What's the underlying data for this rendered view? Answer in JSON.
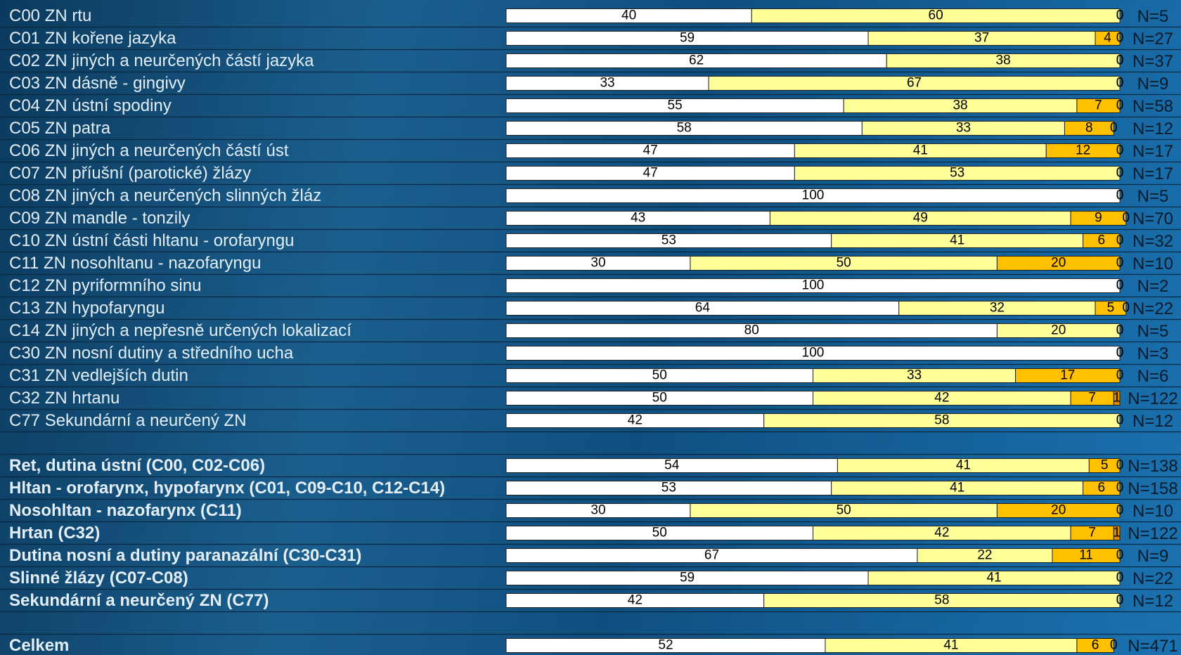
{
  "chart_data": {
    "type": "stacked_bar_horizontal",
    "categories": [
      "C00 ZN rtu",
      "C01 ZN kořene jazyka",
      "C02 ZN jiných a neurčených částí jazyka",
      "C03 ZN dásně - gingivy",
      "C04 ZN ústní spodiny",
      "C05 ZN patra",
      "C06 ZN jiných a neurčených částí úst",
      "C07 ZN příušní (parotické) žlázy",
      "C08 ZN jiných a neurčených slinných žláz",
      "C09 ZN mandle - tonzily",
      "C10 ZN ústní části hltanu - orofaryngu",
      "C11 ZN nosohltanu - nazofaryngu",
      "C12 ZN pyriformního sinu",
      "C13 ZN hypofaryngu",
      "C14 ZN jiných a nepřesně určených lokalizací",
      "C30 ZN nosní dutiny a středního ucha",
      "C31 ZN vedlejších dutin",
      "C32 ZN hrtanu",
      "C77 Sekundární a neurčený ZN",
      null,
      "Ret, dutina ústní (C00, C02-C06)",
      "Hltan - orofarynx, hypofarynx (C01, C09-C10, C12-C14)",
      "Nosohltan - nazofarynx (C11)",
      "Hrtan (C32)",
      "Dutina nosní a dutiny paranazální (C30-C31)",
      "Slinné žlázy (C07-C08)",
      "Sekundární a neurčený ZN (C77)",
      null,
      "Celkem"
    ],
    "series": [
      {
        "color": "#ffffff",
        "values": [
          40,
          59,
          62,
          33,
          55,
          58,
          47,
          47,
          100,
          43,
          53,
          30,
          100,
          64,
          80,
          100,
          50,
          50,
          42,
          null,
          54,
          53,
          30,
          50,
          67,
          59,
          42,
          null,
          52
        ]
      },
      {
        "color": "#ffff99",
        "values": [
          60,
          37,
          38,
          67,
          38,
          33,
          41,
          53,
          0,
          49,
          41,
          50,
          0,
          32,
          20,
          0,
          33,
          42,
          58,
          null,
          41,
          41,
          50,
          42,
          22,
          41,
          58,
          null,
          41
        ]
      },
      {
        "color": "#ffc000",
        "values": [
          0,
          4,
          0,
          0,
          7,
          8,
          12,
          0,
          0,
          9,
          6,
          20,
          0,
          5,
          0,
          0,
          17,
          7,
          0,
          null,
          5,
          6,
          20,
          7,
          11,
          0,
          0,
          null,
          6
        ]
      },
      {
        "color": "#e08a00",
        "values": [
          0,
          0,
          0,
          0,
          0,
          0,
          0,
          0,
          0,
          0,
          0,
          0,
          0,
          0,
          0,
          0,
          0,
          1,
          0,
          null,
          0,
          0,
          0,
          1,
          0,
          0,
          0,
          null,
          0
        ]
      }
    ],
    "n_labels": [
      "N=5",
      "N=27",
      "N=37",
      "N=9",
      "N=58",
      "N=12",
      "N=17",
      "N=17",
      "N=5",
      "N=70",
      "N=32",
      "N=10",
      "N=2",
      "N=22",
      "N=5",
      "N=3",
      "N=6",
      "N=122",
      "N=12",
      null,
      "N=138",
      "N=158",
      "N=10",
      "N=122",
      "N=9",
      "N=22",
      "N=12",
      null,
      "N=471"
    ],
    "xlim": [
      0,
      100
    ]
  }
}
